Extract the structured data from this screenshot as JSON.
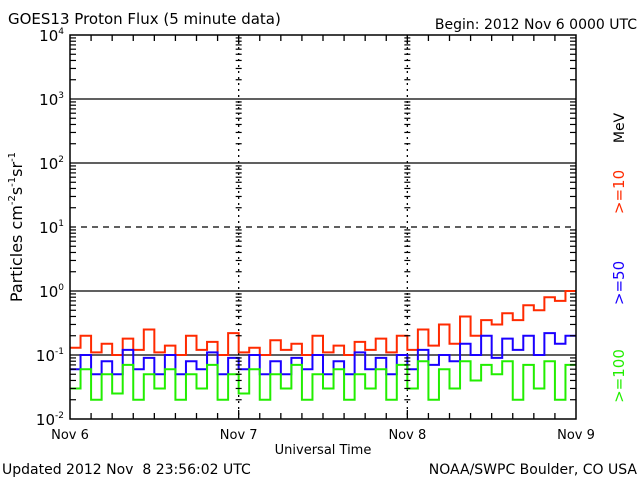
{
  "header": {
    "title": "GOES13 Proton Flux (5 minute data)",
    "begin": "Begin: 2012 Nov 6 0000 UTC"
  },
  "footer": {
    "updated": "Updated 2012 Nov  8 23:56:02 UTC",
    "source": "NOAA/SWPC Boulder, CO USA"
  },
  "chart_data": {
    "type": "line",
    "title": "GOES13 Proton Flux (5 minute data)",
    "xlabel": "Universal Time",
    "ylabel": "Particles cm-2s-1sr-1",
    "ylabel_parts": {
      "base": "Particles cm",
      "e1": "-2",
      "s": "s",
      "e2": "-1",
      "sr": "sr",
      "e3": "-1"
    },
    "yscale": "log",
    "ylim": [
      0.01,
      10000
    ],
    "y_ticks": [
      {
        "base": "10",
        "exp": "4",
        "value": 10000
      },
      {
        "base": "10",
        "exp": "3",
        "value": 1000
      },
      {
        "base": "10",
        "exp": "2",
        "value": 100
      },
      {
        "base": "10",
        "exp": "1",
        "value": 10
      },
      {
        "base": "10",
        "exp": "0",
        "value": 1
      },
      {
        "base": "10",
        "exp": "-1",
        "value": 0.1
      },
      {
        "base": "10",
        "exp": "-2",
        "value": 0.01
      }
    ],
    "x_unit": "hours since 2012 Nov 6 0000 UTC",
    "xlim": [
      0,
      72
    ],
    "x_ticks": [
      {
        "label": "Nov 6",
        "value": 0
      },
      {
        "label": "Nov 7",
        "value": 24
      },
      {
        "label": "Nov 8",
        "value": 48
      },
      {
        "label": "Nov 9",
        "value": 72
      }
    ],
    "threshold_lines": [
      {
        "value": 1000,
        "style": "solid"
      },
      {
        "value": 100,
        "style": "solid"
      },
      {
        "value": 10,
        "style": "dashed"
      },
      {
        "value": 1,
        "style": "solid"
      },
      {
        "value": 0.1,
        "style": "solid"
      }
    ],
    "legend_unit": "MeV",
    "sample_interval_hours": 1.5,
    "series": [
      {
        "name": ">=10",
        "color": "#ff2a00",
        "values": [
          0.13,
          0.2,
          0.11,
          0.15,
          0.1,
          0.18,
          0.12,
          0.25,
          0.11,
          0.14,
          0.1,
          0.2,
          0.12,
          0.16,
          0.1,
          0.22,
          0.11,
          0.13,
          0.1,
          0.17,
          0.12,
          0.15,
          0.1,
          0.2,
          0.11,
          0.14,
          0.1,
          0.16,
          0.12,
          0.18,
          0.11,
          0.2,
          0.12,
          0.25,
          0.14,
          0.3,
          0.15,
          0.4,
          0.2,
          0.35,
          0.3,
          0.45,
          0.35,
          0.6,
          0.5,
          0.8,
          0.7,
          1.0
        ]
      },
      {
        "name": ">=50",
        "color": "#1a00ff",
        "values": [
          0.06,
          0.1,
          0.05,
          0.08,
          0.05,
          0.12,
          0.06,
          0.09,
          0.05,
          0.1,
          0.05,
          0.08,
          0.06,
          0.11,
          0.05,
          0.09,
          0.06,
          0.1,
          0.05,
          0.08,
          0.05,
          0.09,
          0.06,
          0.1,
          0.05,
          0.08,
          0.05,
          0.11,
          0.06,
          0.09,
          0.05,
          0.1,
          0.06,
          0.12,
          0.07,
          0.1,
          0.08,
          0.15,
          0.1,
          0.2,
          0.09,
          0.18,
          0.12,
          0.2,
          0.1,
          0.22,
          0.15,
          0.2
        ]
      },
      {
        "name": ">=100",
        "color": "#22ee00",
        "values": [
          0.03,
          0.06,
          0.02,
          0.05,
          0.025,
          0.07,
          0.02,
          0.05,
          0.03,
          0.06,
          0.02,
          0.05,
          0.03,
          0.07,
          0.02,
          0.05,
          0.025,
          0.06,
          0.02,
          0.05,
          0.03,
          0.07,
          0.02,
          0.05,
          0.03,
          0.06,
          0.02,
          0.05,
          0.03,
          0.06,
          0.02,
          0.07,
          0.03,
          0.08,
          0.02,
          0.06,
          0.03,
          0.08,
          0.04,
          0.07,
          0.05,
          0.08,
          0.02,
          0.07,
          0.03,
          0.08,
          0.02,
          0.07
        ]
      }
    ]
  }
}
